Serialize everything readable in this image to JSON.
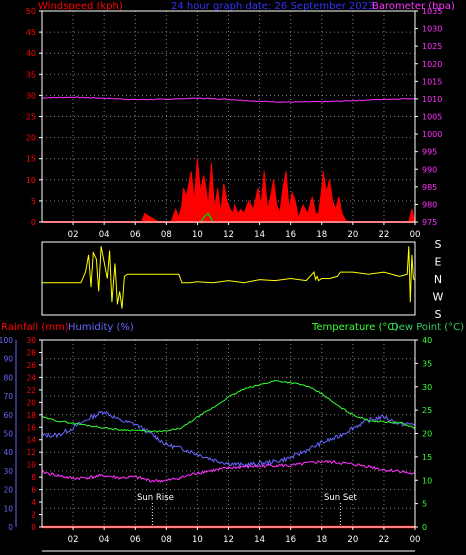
{
  "colors": {
    "background": "#000000",
    "axis": "#ffffff",
    "grid": "#808080",
    "windspeed": "#ff0000",
    "gust": "#00cc00",
    "barometer": "#ff33ff",
    "direction": "#ffff00",
    "rainfall": "#ff0000",
    "humidity": "#6666ff",
    "temperature": "#33ff33",
    "dewpoint": "#ff33ff",
    "sun_marker": "#ffffff",
    "timebar": "#ffffff"
  },
  "header": {
    "windspeed_label": "Windspeed (kph)",
    "title": "24 hour graph date: 26 September 2023",
    "barometer_label": "Barometer (hpa)"
  },
  "time_ticks": [
    "02",
    "04",
    "06",
    "08",
    "10",
    "12",
    "14",
    "16",
    "18",
    "20",
    "22",
    "00"
  ],
  "wind_chart": {
    "y_left": {
      "min": 0,
      "max": 50,
      "ticks": [
        0,
        5,
        10,
        15,
        20,
        25,
        30,
        35,
        40,
        45,
        50
      ]
    },
    "y_right": {
      "min": 975,
      "max": 1035,
      "ticks": [
        975,
        980,
        985,
        990,
        995,
        1000,
        1005,
        1010,
        1015,
        1020,
        1025,
        1030,
        1035
      ]
    }
  },
  "direction_chart": {
    "labels": [
      "S",
      "E",
      "N",
      "W",
      "S"
    ]
  },
  "temp_chart": {
    "labels": {
      "rainfall": "Rainfall (mm)",
      "humidity": "Humidity (%)",
      "temperature": "Temperature (°C)",
      "dewpoint": "Dew Point (°C)"
    },
    "y_humidity": {
      "min": 0,
      "max": 100,
      "ticks": [
        0,
        10,
        20,
        30,
        40,
        50,
        60,
        70,
        80,
        90,
        100
      ]
    },
    "y_rain": {
      "min": 0,
      "max": 30,
      "ticks": [
        0,
        2,
        4,
        6,
        8,
        10,
        12,
        14,
        16,
        18,
        20,
        22,
        24,
        26,
        28,
        30
      ]
    },
    "y_temp": {
      "min": 0,
      "max": 40,
      "ticks": [
        0,
        5,
        10,
        15,
        20,
        25,
        30,
        35,
        40
      ]
    },
    "sun_rise_label": "Sun Rise",
    "sun_set_label": "Sun Set"
  },
  "chart_data": [
    {
      "type": "area",
      "title": "24 hour graph date: 26 September 2023",
      "x_unit": "hour",
      "xlim": [
        0,
        24
      ],
      "series": [
        {
          "name": "Windspeed (kph)",
          "axis": "left",
          "type": "area",
          "x": [
            0,
            6.4,
            6.6,
            7.5,
            8.3,
            8.6,
            8.8,
            9.0,
            9.1,
            9.3,
            9.5,
            9.6,
            9.8,
            10.0,
            10.2,
            10.4,
            10.5,
            10.7,
            10.9,
            11.1,
            11.3,
            11.5,
            11.7,
            11.9,
            12.1,
            12.3,
            12.4,
            12.6,
            12.8,
            13.0,
            13.3,
            13.6,
            13.9,
            14.1,
            14.3,
            14.5,
            14.7,
            14.9,
            15.1,
            15.3,
            15.5,
            15.7,
            15.9,
            16.1,
            16.3,
            16.5,
            16.8,
            17.1,
            17.4,
            17.6,
            17.8,
            18.0,
            18.1,
            18.3,
            18.5,
            18.7,
            18.9,
            19.1,
            19.3,
            19.6,
            23.6,
            23.8,
            24
          ],
          "values": [
            0,
            0,
            2,
            0,
            0,
            3,
            1,
            4,
            8,
            6,
            10,
            12,
            5,
            15,
            7,
            11,
            9,
            4,
            14,
            3,
            8,
            2,
            9,
            5,
            3,
            2,
            4,
            2,
            3,
            2,
            5,
            3,
            8,
            4,
            12,
            3,
            6,
            10,
            4,
            2,
            8,
            12,
            3,
            7,
            5,
            1,
            4,
            2,
            6,
            2,
            2,
            8,
            12,
            7,
            10,
            5,
            3,
            6,
            2,
            0,
            0,
            3,
            0
          ]
        },
        {
          "name": "Gust",
          "axis": "left",
          "type": "line",
          "x": [
            0,
            10.2,
            10.5,
            10.7,
            11.0,
            24
          ],
          "values": [
            0,
            0,
            1.5,
            2,
            0,
            0
          ]
        },
        {
          "name": "Barometer (hpa)",
          "axis": "right",
          "type": "line",
          "x": [
            0,
            2,
            4,
            6,
            8,
            10,
            12,
            14,
            16,
            18,
            20,
            22,
            24
          ],
          "values": [
            1010.3,
            1010.5,
            1010.2,
            1009.8,
            1009.9,
            1010.2,
            1009.9,
            1009.3,
            1009.1,
            1009.2,
            1009.5,
            1009.9,
            1010.1
          ]
        }
      ],
      "ylim_left": [
        0,
        50
      ],
      "ylim_right": [
        975,
        1035
      ]
    },
    {
      "type": "line",
      "name": "Wind direction",
      "x_unit": "hour",
      "xlim": [
        0,
        24
      ],
      "series": [
        {
          "name": "Direction",
          "y_scale": [
            "S",
            "E",
            "N",
            "W",
            "S"
          ],
          "x": [
            0,
            2.5,
            2.8,
            3.0,
            3.15,
            3.3,
            3.5,
            3.65,
            3.8,
            4.2,
            4.35,
            4.5,
            4.7,
            4.85,
            5.0,
            5.15,
            5.3,
            5.5,
            6.0,
            8.0,
            8.3,
            8.8,
            9.0,
            9.5,
            10.0,
            11.0,
            12.0,
            13.0,
            14.0,
            15.0,
            16.0,
            17.0,
            17.5,
            17.6,
            17.7,
            17.8,
            18.0,
            18.5,
            19.0,
            19.2,
            20.0,
            21.0,
            22.0,
            23.0,
            23.5,
            23.6,
            23.7,
            23.8,
            23.9,
            24
          ],
          "values": [
            2.7,
            2.7,
            2.2,
            1.4,
            2.9,
            1.3,
            1.6,
            3.1,
            1.0,
            2.5,
            1.2,
            3.6,
            1.8,
            3.7,
            3.1,
            3.9,
            2.4,
            2.3,
            2.3,
            2.3,
            2.3,
            2.3,
            2.7,
            2.7,
            2.65,
            2.7,
            2.6,
            2.7,
            2.55,
            2.6,
            2.5,
            2.6,
            2.2,
            2.55,
            2.4,
            2.6,
            2.5,
            2.5,
            2.4,
            2.2,
            2.2,
            2.3,
            2.2,
            2.4,
            2.3,
            1.0,
            3.6,
            1.4,
            2.5,
            2.6
          ]
        }
      ]
    },
    {
      "type": "line",
      "x_unit": "hour",
      "xlim": [
        0,
        24
      ],
      "series": [
        {
          "name": "Rainfall (mm)",
          "axis": "rain",
          "x": [
            0,
            24
          ],
          "values": [
            0,
            0
          ]
        },
        {
          "name": "Humidity (%)",
          "axis": "humidity",
          "x": [
            0,
            1,
            2,
            3,
            4,
            5,
            6,
            7,
            8,
            9,
            10,
            11,
            12,
            13,
            14,
            15,
            16,
            17,
            18,
            19,
            20,
            21,
            22,
            23,
            24
          ],
          "values": [
            49,
            49,
            53,
            58,
            62,
            57,
            55,
            50,
            44,
            42,
            39,
            36,
            34,
            33,
            34,
            35,
            37,
            41,
            45,
            48,
            53,
            57,
            59,
            55,
            55
          ]
        },
        {
          "name": "Temperature (°C)",
          "axis": "temp",
          "x": [
            0,
            1,
            2,
            3,
            4,
            5,
            6,
            7,
            8,
            9,
            10,
            11,
            12,
            13,
            14,
            15,
            16,
            17,
            18,
            19,
            20,
            21,
            22,
            23,
            24
          ],
          "values": [
            23.5,
            22.7,
            22.2,
            21.7,
            21.2,
            20.8,
            20.7,
            20.4,
            20.5,
            21.2,
            23.5,
            25.5,
            27.8,
            29.5,
            30.4,
            31.3,
            30.9,
            30.2,
            28.5,
            26.0,
            24.0,
            22.8,
            22.5,
            22.3,
            21.2
          ]
        },
        {
          "name": "Dew Point (°C)",
          "axis": "temp",
          "x": [
            0,
            1,
            2,
            3,
            4,
            5,
            6,
            7,
            8,
            9,
            10,
            11,
            12,
            13,
            14,
            15,
            16,
            17,
            18,
            19,
            20,
            21,
            22,
            23,
            24
          ],
          "values": [
            11.8,
            11.0,
            10.4,
            10.6,
            11.0,
            10.5,
            10.7,
            9.9,
            9.9,
            10.6,
            11.6,
            12.1,
            12.6,
            12.9,
            13.0,
            13.2,
            13.1,
            13.6,
            14.0,
            13.8,
            13.4,
            13.0,
            12.2,
            12.0,
            11.2
          ]
        }
      ],
      "markers": [
        {
          "label": "Sun Rise",
          "x": 7.1
        },
        {
          "label": "Sun Set",
          "x": 19.2
        }
      ]
    }
  ]
}
